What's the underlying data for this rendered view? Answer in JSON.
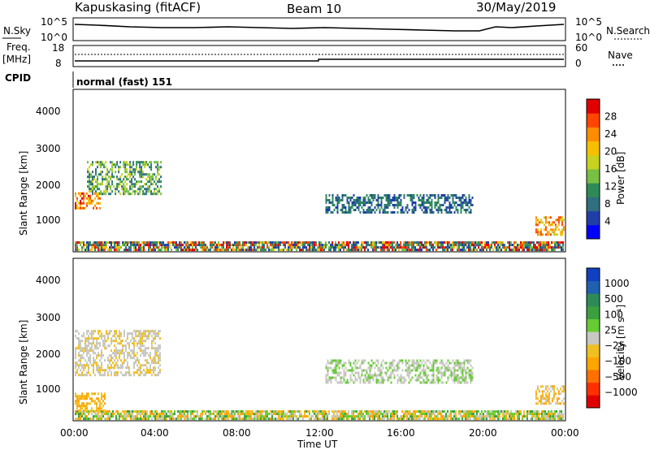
{
  "header": {
    "station": "Kapuskasing (fitACF)",
    "beam": "Beam 10",
    "date": "30/May/2019"
  },
  "aux_panels": {
    "nsky_label": "N.Sky",
    "nsky_ticks": [
      "10^5",
      "10^0"
    ],
    "nsearch_label": "N.Search",
    "nsearch_ticks": [
      "10^5",
      "10^0"
    ],
    "freq_label": "Freq.",
    "freq_unit": "[MHz]",
    "freq_ticks": [
      "18",
      "8"
    ],
    "nave_label": "Nave",
    "nave_ticks": [
      "60",
      "0"
    ],
    "cpid_label": "CPID",
    "cpid_text": "normal (fast) 151"
  },
  "axes": {
    "ylabel": "Slant Range [km]",
    "yticks": [
      "1000",
      "2000",
      "3000",
      "4000"
    ],
    "xticks": [
      "00:00",
      "04:00",
      "08:00",
      "12:00",
      "16:00",
      "20:00",
      "00:00"
    ],
    "xlabel": "Time UT"
  },
  "power_colorbar": {
    "label": "Power [dB]",
    "ticks": [
      "4",
      "8",
      "12",
      "16",
      "20",
      "24",
      "28"
    ],
    "colors": [
      "#0000ff",
      "#1f3fa6",
      "#2f6f7f",
      "#2e8b57",
      "#77c043",
      "#c8d21f",
      "#f5c000",
      "#ff8c00",
      "#ff4500",
      "#e00000"
    ]
  },
  "velocity_colorbar": {
    "label": "Velocity [m s⁻¹]",
    "ticks": [
      "1000",
      "500",
      "100",
      "25",
      "−25",
      "−100",
      "−500",
      "−1000"
    ],
    "colors": [
      "#1040c0",
      "#2060b0",
      "#2e8b57",
      "#3ca040",
      "#66cc33",
      "#c8c8c0",
      "#f0c020",
      "#ffa500",
      "#ff7000",
      "#ff3000",
      "#e00000"
    ]
  },
  "chart_data": [
    {
      "type": "heatmap",
      "title": "Power",
      "xlabel": "Time UT",
      "ylabel": "Slant Range [km]",
      "xlim_hours": [
        0,
        24
      ],
      "ylim_km": [
        180,
        4500
      ],
      "regions": [
        {
          "t0": 0.0,
          "t1": 24.0,
          "r0": 180,
          "r1": 420,
          "val": "mixed 4-28 dB"
        },
        {
          "t0": 0.0,
          "t1": 1.2,
          "r0": 1300,
          "r1": 1750,
          "val": "20-28 dB"
        },
        {
          "t0": 0.6,
          "t1": 4.2,
          "r0": 1700,
          "r1": 2600,
          "val": "12-20 dB"
        },
        {
          "t0": 12.3,
          "t1": 19.5,
          "r0": 1200,
          "r1": 1700,
          "val": "8-12 dB"
        },
        {
          "t0": 22.6,
          "t1": 24.0,
          "r0": 600,
          "r1": 1100,
          "val": "16-24 dB"
        }
      ]
    },
    {
      "type": "heatmap",
      "title": "Velocity",
      "xlabel": "Time UT",
      "ylabel": "Slant Range [km]",
      "xlim_hours": [
        0,
        24
      ],
      "ylim_km": [
        180,
        4500
      ],
      "regions": [
        {
          "t0": 0.0,
          "t1": 24.0,
          "r0": 180,
          "r1": 420,
          "val": "-100 to 100 m/s"
        },
        {
          "t0": 0.0,
          "t1": 4.2,
          "r0": 1400,
          "r1": 2600,
          "val": "-25 to 25 m/s"
        },
        {
          "t0": 0.0,
          "t1": 1.5,
          "r0": 400,
          "r1": 900,
          "val": "-100 m/s"
        },
        {
          "t0": 12.3,
          "t1": 19.5,
          "r0": 1200,
          "r1": 1800,
          "val": "-25 to 25 m/s"
        },
        {
          "t0": 22.6,
          "t1": 24.0,
          "r0": 600,
          "r1": 1100,
          "val": "-100 m/s"
        }
      ]
    }
  ]
}
